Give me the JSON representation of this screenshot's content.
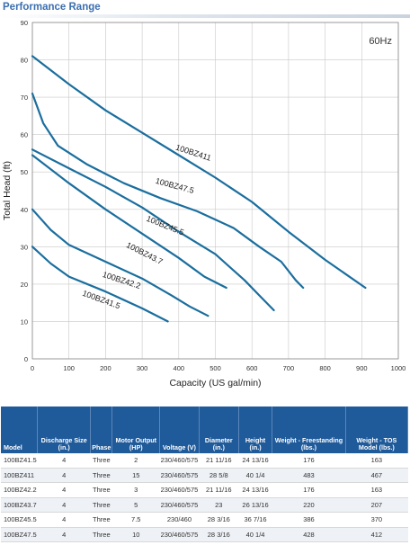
{
  "header": {
    "title": "Performance Range"
  },
  "chart_data": {
    "type": "line",
    "title": "",
    "xlabel": "Capacity (US gal/min)",
    "ylabel": "Total Head (ft)",
    "annotation": "60Hz",
    "xlim": [
      0,
      1000
    ],
    "ylim": [
      0,
      90
    ],
    "xticks": [
      "0",
      "100",
      "200",
      "300",
      "400",
      "500",
      "600",
      "700",
      "800",
      "900",
      "1000"
    ],
    "yticks": [
      "0",
      "10",
      "20",
      "30",
      "40",
      "50",
      "60",
      "70",
      "80",
      "90"
    ],
    "grid": true,
    "line_color": "#1a6e9e",
    "series": [
      {
        "name": "100BZ411",
        "label_at": [
          390,
          56
        ],
        "label_angle": 18,
        "points": [
          [
            0,
            81
          ],
          [
            100,
            73.5
          ],
          [
            200,
            66.5
          ],
          [
            300,
            60.5
          ],
          [
            400,
            54.5
          ],
          [
            500,
            48.5
          ],
          [
            600,
            42
          ],
          [
            700,
            34
          ],
          [
            800,
            26.5
          ],
          [
            910,
            19
          ]
        ]
      },
      {
        "name": "100BZ47.5",
        "label_at": [
          335,
          47
        ],
        "label_angle": 15,
        "points": [
          [
            0,
            71
          ],
          [
            30,
            63
          ],
          [
            70,
            57
          ],
          [
            150,
            52
          ],
          [
            250,
            47
          ],
          [
            350,
            43
          ],
          [
            450,
            39.5
          ],
          [
            550,
            35
          ],
          [
            620,
            30
          ],
          [
            680,
            26
          ],
          [
            720,
            21
          ],
          [
            740,
            19
          ]
        ]
      },
      {
        "name": "100BZ45.5",
        "label_at": [
          310,
          37
        ],
        "label_angle": 22,
        "points": [
          [
            0,
            56
          ],
          [
            100,
            51
          ],
          [
            200,
            46
          ],
          [
            300,
            40.5
          ],
          [
            400,
            34
          ],
          [
            500,
            28
          ],
          [
            580,
            21
          ],
          [
            620,
            17
          ],
          [
            660,
            13
          ]
        ]
      },
      {
        "name": "100BZ43.7",
        "label_at": [
          255,
          30
        ],
        "label_angle": 27,
        "points": [
          [
            0,
            54.5
          ],
          [
            100,
            47
          ],
          [
            200,
            40
          ],
          [
            300,
            33.5
          ],
          [
            400,
            27
          ],
          [
            470,
            22
          ],
          [
            530,
            19
          ]
        ]
      },
      {
        "name": "100BZ42.2",
        "label_at": [
          190,
          22
        ],
        "label_angle": 18,
        "points": [
          [
            0,
            40
          ],
          [
            50,
            34.5
          ],
          [
            100,
            30.5
          ],
          [
            200,
            26
          ],
          [
            300,
            21.5
          ],
          [
            380,
            17
          ],
          [
            430,
            14
          ],
          [
            480,
            11.5
          ]
        ]
      },
      {
        "name": "100BZ41.5",
        "label_at": [
          135,
          17
        ],
        "label_angle": 20,
        "points": [
          [
            0,
            30
          ],
          [
            50,
            25.5
          ],
          [
            100,
            22
          ],
          [
            200,
            18
          ],
          [
            300,
            13.5
          ],
          [
            370,
            10
          ]
        ]
      }
    ]
  },
  "table": {
    "headers": [
      "Model",
      "Discharge Size (in.)",
      "Phase",
      "Motor Output (HP)",
      "Voltage (V)",
      "Diameter (in.)",
      "Height (in.)",
      "Weight - Freestanding (lbs.)",
      "Weight - TOS Model (lbs.)"
    ],
    "rows": [
      [
        "100BZ41.5",
        "4",
        "Three",
        "2",
        "230/460/575",
        "21 11/16",
        "24 13/16",
        "176",
        "163"
      ],
      [
        "100BZ411",
        "4",
        "Three",
        "15",
        "230/460/575",
        "28 5/8",
        "40 1/4",
        "483",
        "467"
      ],
      [
        "100BZ42.2",
        "4",
        "Three",
        "3",
        "230/460/575",
        "21 11/16",
        "24 13/16",
        "176",
        "163"
      ],
      [
        "100BZ43.7",
        "4",
        "Three",
        "5",
        "230/460/575",
        "23",
        "26 13/16",
        "220",
        "207"
      ],
      [
        "100BZ45.5",
        "4",
        "Three",
        "7.5",
        "230/460",
        "28 3/16",
        "36 7/16",
        "386",
        "370"
      ],
      [
        "100BZ47.5",
        "4",
        "Three",
        "10",
        "230/460/575",
        "28 3/16",
        "40 1/4",
        "428",
        "412"
      ]
    ]
  }
}
